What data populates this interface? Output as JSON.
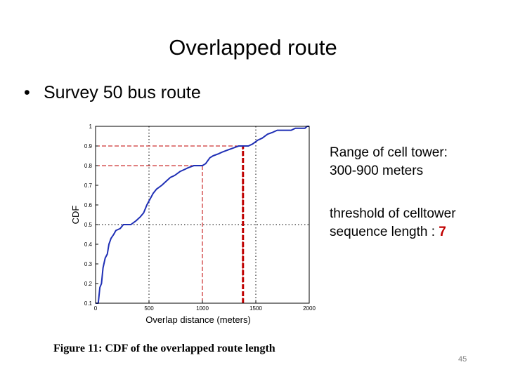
{
  "slide": {
    "title": "Overlapped route",
    "bullet": "Survey 50 bus route",
    "notes": {
      "range_label": "Range of cell tower",
      "range_colon": ":",
      "range_value": "300-900 meters",
      "threshold_line1": "threshold of celltower",
      "threshold_line2": "sequence length : ",
      "threshold_value": "7"
    },
    "caption": "Figure 11:  CDF of the overlapped route length",
    "page_number": "45"
  },
  "chart_data": {
    "type": "line",
    "xlabel": "Overlap distance (meters)",
    "ylabel": "CDF",
    "xlim": [
      0,
      2000
    ],
    "ylim": [
      0.1,
      1
    ],
    "x_ticks": [
      0,
      500,
      1000,
      1500,
      2000
    ],
    "x_tick_labels": [
      "0",
      "500",
      "1000",
      "1500",
      "2000"
    ],
    "y_ticks": [
      0.1,
      0.2,
      0.3,
      0.4,
      0.5,
      0.6,
      0.7,
      0.8,
      0.9,
      1
    ],
    "y_tick_labels": [
      "0.1",
      "0.2",
      "0.3",
      "0.4",
      "0.5",
      "0.6",
      "0.7",
      "0.8",
      "0.9",
      "1"
    ],
    "series": [
      {
        "color": "#1f2fb5",
        "x": [
          0,
          25,
          40,
          55,
          70,
          90,
          110,
          125,
          145,
          170,
          190,
          230,
          260,
          290,
          330,
          380,
          420,
          450,
          480,
          500,
          540,
          570,
          620,
          660,
          700,
          740,
          790,
          830,
          870,
          920,
          960,
          1000,
          1030,
          1070,
          1100,
          1150,
          1190,
          1240,
          1290,
          1340,
          1380,
          1430,
          1470,
          1520,
          1560,
          1610,
          1660,
          1700,
          1760,
          1830,
          1870,
          1920,
          1960,
          1980,
          2000
        ],
        "y": [
          0.1,
          0.1,
          0.18,
          0.2,
          0.28,
          0.33,
          0.35,
          0.4,
          0.43,
          0.45,
          0.47,
          0.48,
          0.5,
          0.5,
          0.5,
          0.52,
          0.54,
          0.56,
          0.6,
          0.62,
          0.66,
          0.68,
          0.7,
          0.72,
          0.74,
          0.75,
          0.77,
          0.78,
          0.79,
          0.8,
          0.8,
          0.8,
          0.81,
          0.84,
          0.85,
          0.86,
          0.87,
          0.88,
          0.89,
          0.9,
          0.9,
          0.9,
          0.91,
          0.93,
          0.94,
          0.96,
          0.97,
          0.98,
          0.98,
          0.98,
          0.99,
          0.99,
          0.99,
          1.0,
          1.0
        ]
      }
    ],
    "dotted_grid": {
      "x": [
        500,
        1500
      ],
      "y": [
        0.5
      ]
    },
    "reference_lines": [
      {
        "style": "dashed",
        "color": "#c00000",
        "x": 1000,
        "y": 0.8
      },
      {
        "style": "dashed",
        "color": "#c00000",
        "x": 1380,
        "y": 0.9
      },
      {
        "style": "thick-dashed",
        "color": "#c00000",
        "x": 1380
      }
    ],
    "grid": "partial dotted"
  }
}
